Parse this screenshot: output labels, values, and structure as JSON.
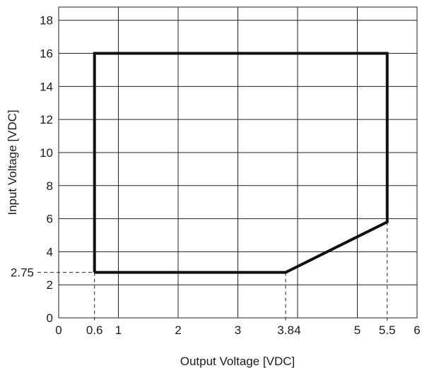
{
  "chart_data": {
    "type": "line",
    "xlabel": "Output Voltage [VDC]",
    "ylabel": "Input Voltage [VDC]",
    "xlim": [
      0,
      6
    ],
    "ylim": [
      0,
      18.8
    ],
    "grid": true,
    "x_ticks": [
      0,
      1,
      2,
      3,
      4,
      5,
      6
    ],
    "x_tick_labels": [
      "0",
      "1",
      "2",
      "3",
      "4",
      "5",
      "6"
    ],
    "y_ticks": [
      0,
      2,
      4,
      6,
      8,
      10,
      12,
      14,
      16,
      18
    ],
    "y_tick_labels": [
      "0",
      "2",
      "4",
      "6",
      "8",
      "10",
      "12",
      "14",
      "16",
      "18"
    ],
    "series": [
      {
        "x": [
          0.6,
          0.6,
          5.5,
          5.5,
          3.8,
          0.6
        ],
        "y": [
          2.75,
          16,
          16,
          5.8,
          2.75,
          2.75
        ]
      }
    ],
    "annotations": [
      {
        "axis": "x",
        "value": 0.6,
        "label": "0.6",
        "anchor_y": 2.75
      },
      {
        "axis": "x",
        "value": 3.8,
        "label": "3.8",
        "anchor_y": 2.75
      },
      {
        "axis": "x",
        "value": 5.5,
        "label": "5.5",
        "anchor_y": 5.8
      },
      {
        "axis": "y",
        "value": 2.75,
        "label": "2.75",
        "anchor_x": 0.6
      }
    ]
  }
}
